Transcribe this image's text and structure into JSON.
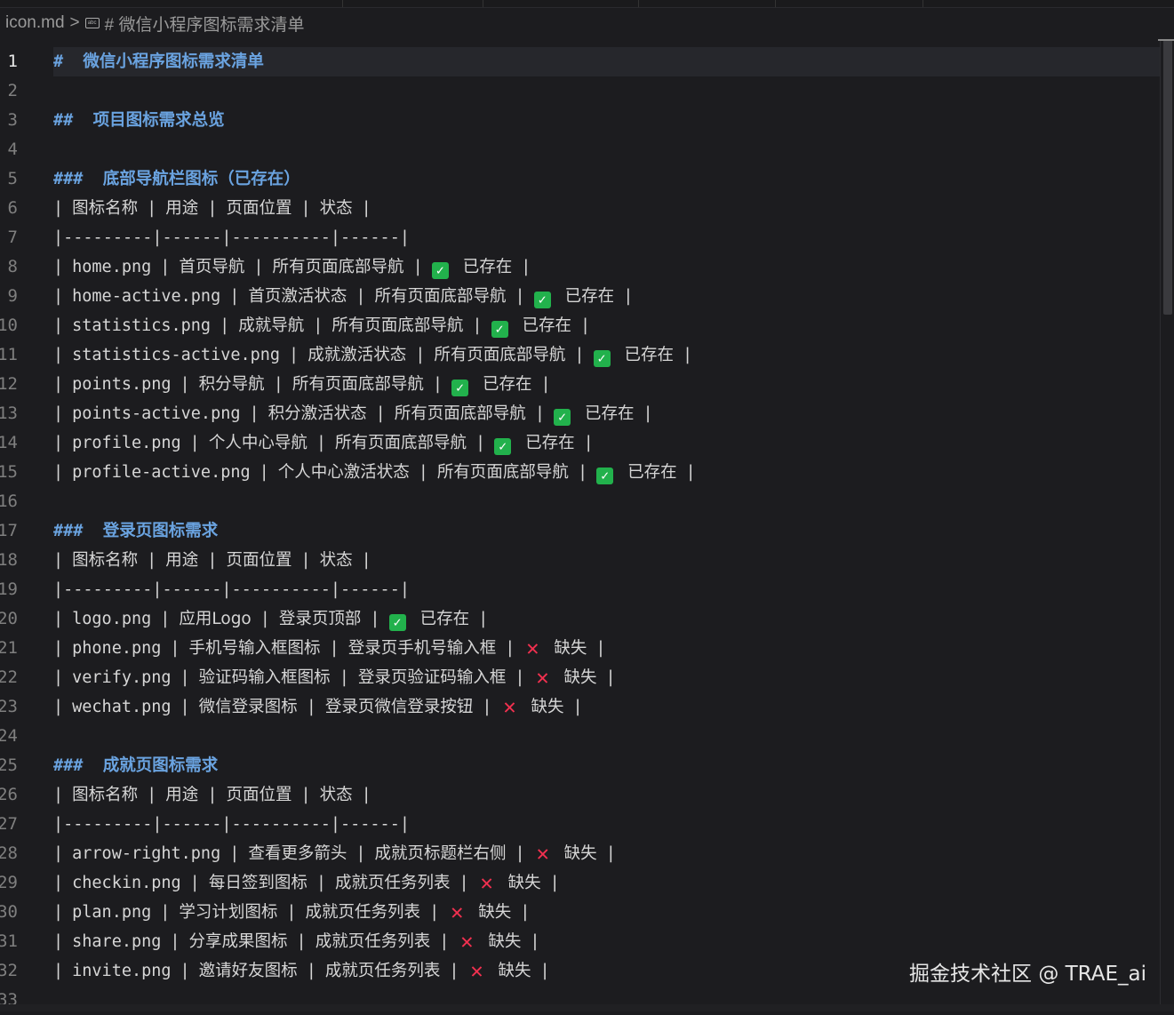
{
  "breadcrumb": {
    "file": "icon.md",
    "separator": ">",
    "symbol_icon": "markdown-heading-icon",
    "section": "# 微信小程序图标需求清单"
  },
  "colors": {
    "heading": "#6aa3e0",
    "check": "#22b14c",
    "cross": "#f0304f",
    "background": "#1c1c1f"
  },
  "watermark": "掘金技术社区 @ TRAE_ai",
  "current_line": 1,
  "lines": [
    {
      "n": "1",
      "type": "heading",
      "marker": "#",
      "text": "微信小程序图标需求清单"
    },
    {
      "n": "2",
      "type": "blank"
    },
    {
      "n": "3",
      "type": "heading",
      "marker": "##",
      "text": "项目图标需求总览"
    },
    {
      "n": "4",
      "type": "blank"
    },
    {
      "n": "5",
      "type": "heading",
      "marker": "###",
      "text": "底部导航栏图标（已存在）"
    },
    {
      "n": "6",
      "type": "row",
      "cells": [
        "图标名称",
        "用途",
        "页面位置",
        "状态"
      ]
    },
    {
      "n": "7",
      "type": "raw",
      "text": "|---------|------|----------|------|"
    },
    {
      "n": "8",
      "type": "row",
      "cells": [
        "home.png",
        "首页导航",
        "所有页面底部导航"
      ],
      "status": {
        "icon": "check",
        "label": "已存在"
      }
    },
    {
      "n": "9",
      "type": "row",
      "cells": [
        "home-active.png",
        "首页激活状态",
        "所有页面底部导航"
      ],
      "status": {
        "icon": "check",
        "label": "已存在"
      }
    },
    {
      "n": "10",
      "type": "row",
      "cells": [
        "statistics.png",
        "成就导航",
        "所有页面底部导航"
      ],
      "status": {
        "icon": "check",
        "label": "已存在"
      }
    },
    {
      "n": "11",
      "type": "row",
      "cells": [
        "statistics-active.png",
        "成就激活状态",
        "所有页面底部导航"
      ],
      "status": {
        "icon": "check",
        "label": "已存在"
      }
    },
    {
      "n": "12",
      "type": "row",
      "cells": [
        "points.png",
        "积分导航",
        "所有页面底部导航"
      ],
      "status": {
        "icon": "check",
        "label": "已存在"
      }
    },
    {
      "n": "13",
      "type": "row",
      "cells": [
        "points-active.png",
        "积分激活状态",
        "所有页面底部导航"
      ],
      "status": {
        "icon": "check",
        "label": "已存在"
      }
    },
    {
      "n": "14",
      "type": "row",
      "cells": [
        "profile.png",
        "个人中心导航",
        "所有页面底部导航"
      ],
      "status": {
        "icon": "check",
        "label": "已存在"
      }
    },
    {
      "n": "15",
      "type": "row",
      "cells": [
        "profile-active.png",
        "个人中心激活状态",
        "所有页面底部导航"
      ],
      "status": {
        "icon": "check",
        "label": "已存在"
      }
    },
    {
      "n": "16",
      "type": "blank"
    },
    {
      "n": "17",
      "type": "heading",
      "marker": "###",
      "text": "登录页图标需求"
    },
    {
      "n": "18",
      "type": "row",
      "cells": [
        "图标名称",
        "用途",
        "页面位置",
        "状态"
      ]
    },
    {
      "n": "19",
      "type": "raw",
      "text": "|---------|------|----------|------|"
    },
    {
      "n": "20",
      "type": "row",
      "cells": [
        "logo.png",
        "应用Logo",
        "登录页顶部"
      ],
      "status": {
        "icon": "check",
        "label": "已存在"
      }
    },
    {
      "n": "21",
      "type": "row",
      "cells": [
        "phone.png",
        "手机号输入框图标",
        "登录页手机号输入框"
      ],
      "status": {
        "icon": "cross",
        "label": "缺失"
      }
    },
    {
      "n": "22",
      "type": "row",
      "cells": [
        "verify.png",
        "验证码输入框图标",
        "登录页验证码输入框"
      ],
      "status": {
        "icon": "cross",
        "label": "缺失"
      }
    },
    {
      "n": "23",
      "type": "row",
      "cells": [
        "wechat.png",
        "微信登录图标",
        "登录页微信登录按钮"
      ],
      "status": {
        "icon": "cross",
        "label": "缺失"
      }
    },
    {
      "n": "24",
      "type": "blank"
    },
    {
      "n": "25",
      "type": "heading",
      "marker": "###",
      "text": "成就页图标需求"
    },
    {
      "n": "26",
      "type": "row",
      "cells": [
        "图标名称",
        "用途",
        "页面位置",
        "状态"
      ]
    },
    {
      "n": "27",
      "type": "raw",
      "text": "|---------|------|----------|------|"
    },
    {
      "n": "28",
      "type": "row",
      "cells": [
        "arrow-right.png",
        "查看更多箭头",
        "成就页标题栏右侧"
      ],
      "status": {
        "icon": "cross",
        "label": "缺失"
      }
    },
    {
      "n": "29",
      "type": "row",
      "cells": [
        "checkin.png",
        "每日签到图标",
        "成就页任务列表"
      ],
      "status": {
        "icon": "cross",
        "label": "缺失"
      }
    },
    {
      "n": "30",
      "type": "row",
      "cells": [
        "plan.png",
        "学习计划图标",
        "成就页任务列表"
      ],
      "status": {
        "icon": "cross",
        "label": "缺失"
      }
    },
    {
      "n": "31",
      "type": "row",
      "cells": [
        "share.png",
        "分享成果图标",
        "成就页任务列表"
      ],
      "status": {
        "icon": "cross",
        "label": "缺失"
      }
    },
    {
      "n": "32",
      "type": "row",
      "cells": [
        "invite.png",
        "邀请好友图标",
        "成就页任务列表"
      ],
      "status": {
        "icon": "cross",
        "label": "缺失"
      }
    },
    {
      "n": "33",
      "type": "blank"
    }
  ]
}
